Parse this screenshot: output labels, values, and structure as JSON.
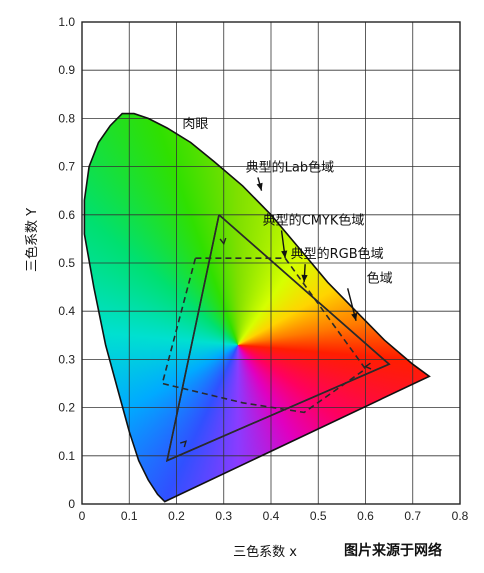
{
  "chart_data": {
    "type": "line",
    "xlabel": "三色系数 x",
    "ylabel": "三色系数 Y",
    "xlim": [
      0,
      0.8
    ],
    "ylim": [
      0,
      1.0
    ],
    "x_ticks": [
      "0",
      "0.1",
      "0.2",
      "0.3",
      "0.4",
      "0.5",
      "0.6",
      "0.7",
      "0.8"
    ],
    "y_ticks": [
      "0",
      "0.1",
      "0.2",
      "0.3",
      "0.4",
      "0.5",
      "0.6",
      "0.7",
      "0.8",
      "0.9",
      "1.0"
    ],
    "grid": true,
    "white_point": [
      0.33,
      0.33
    ],
    "locus": [
      [
        0.175,
        0.005
      ],
      [
        0.16,
        0.02
      ],
      [
        0.14,
        0.05
      ],
      [
        0.12,
        0.09
      ],
      [
        0.1,
        0.15
      ],
      [
        0.075,
        0.24
      ],
      [
        0.05,
        0.33
      ],
      [
        0.025,
        0.45
      ],
      [
        0.005,
        0.56
      ],
      [
        0.005,
        0.63
      ],
      [
        0.015,
        0.7
      ],
      [
        0.035,
        0.75
      ],
      [
        0.06,
        0.785
      ],
      [
        0.085,
        0.81
      ],
      [
        0.11,
        0.81
      ],
      [
        0.14,
        0.8
      ],
      [
        0.18,
        0.78
      ],
      [
        0.23,
        0.75
      ],
      [
        0.28,
        0.71
      ],
      [
        0.34,
        0.66
      ],
      [
        0.4,
        0.6
      ],
      [
        0.46,
        0.53
      ],
      [
        0.52,
        0.46
      ],
      [
        0.58,
        0.4
      ],
      [
        0.64,
        0.34
      ],
      [
        0.7,
        0.29
      ],
      [
        0.735,
        0.265
      ],
      [
        0.175,
        0.005
      ]
    ],
    "series": [
      {
        "style": "solid",
        "points": [
          [
            0.29,
            0.6
          ],
          [
            0.65,
            0.29
          ],
          [
            0.18,
            0.09
          ],
          [
            0.29,
            0.6
          ]
        ]
      },
      {
        "style": "dashed",
        "points": [
          [
            0.24,
            0.51
          ],
          [
            0.43,
            0.51
          ],
          [
            0.6,
            0.28
          ],
          [
            0.47,
            0.19
          ],
          [
            0.34,
            0.21
          ],
          [
            0.17,
            0.25
          ],
          [
            0.24,
            0.51
          ]
        ]
      },
      {
        "style": "solid",
        "points": [
          [
            0.29,
            0.6
          ],
          [
            0.65,
            0.29
          ],
          [
            0.18,
            0.09
          ],
          [
            0.29,
            0.6
          ]
        ]
      }
    ],
    "annotations": [
      {
        "text": "肉眼",
        "x": 0.24,
        "y": 0.78
      },
      {
        "text": "典型的Lab色域",
        "x": 0.44,
        "y": 0.69,
        "target": [
          0.38,
          0.65
        ]
      },
      {
        "text": "典型的CMYK色域",
        "x": 0.49,
        "y": 0.58,
        "target": [
          0.43,
          0.51
        ]
      },
      {
        "text": "典型的RGB色域",
        "x": 0.54,
        "y": 0.51,
        "target": [
          0.47,
          0.46
        ]
      },
      {
        "text": "色域",
        "x": 0.63,
        "y": 0.46,
        "target": [
          0.58,
          0.38
        ]
      }
    ]
  },
  "credit": "图片来源于网络"
}
